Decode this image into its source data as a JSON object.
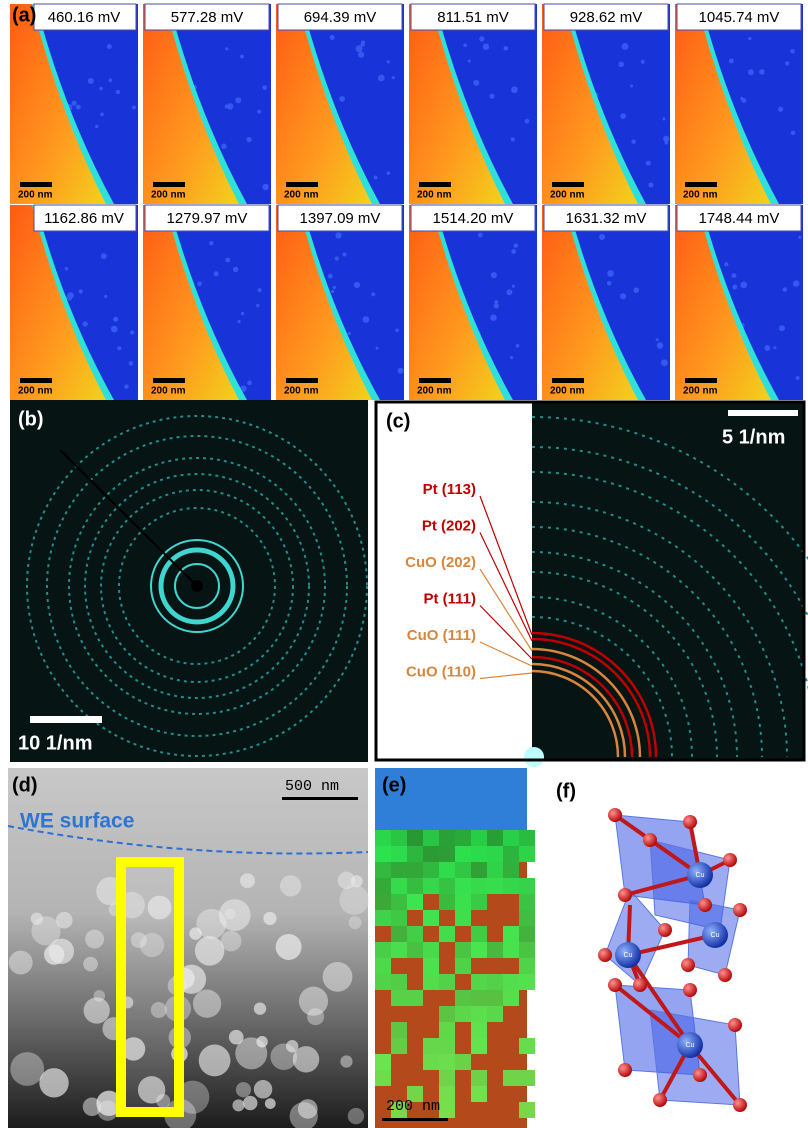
{
  "panel_a": {
    "label": "(a)",
    "tiles": [
      {
        "voltage": "460.16 mV",
        "scale_bar": "200 nm"
      },
      {
        "voltage": "577.28 mV",
        "scale_bar": "200 nm"
      },
      {
        "voltage": "694.39 mV",
        "scale_bar": "200 nm"
      },
      {
        "voltage": "811.51 mV",
        "scale_bar": "200 nm"
      },
      {
        "voltage": "928.62 mV",
        "scale_bar": "200 nm"
      },
      {
        "voltage": "1045.74 mV",
        "scale_bar": "200 nm"
      },
      {
        "voltage": "1162.86 mV",
        "scale_bar": "200 nm"
      },
      {
        "voltage": "1279.97 mV",
        "scale_bar": "200 nm"
      },
      {
        "voltage": "1397.09 mV",
        "scale_bar": "200 nm"
      },
      {
        "voltage": "1514.20 mV",
        "scale_bar": "200 nm"
      },
      {
        "voltage": "1631.32 mV",
        "scale_bar": "200 nm"
      },
      {
        "voltage": "1748.44 mV",
        "scale_bar": "200 nm"
      }
    ]
  },
  "panel_b": {
    "label": "(b)",
    "scale_bar": "10 1/nm"
  },
  "panel_c": {
    "label": "(c)",
    "scale_bar": "5 1/nm",
    "rings": [
      {
        "label": "Pt (113)",
        "color": "#c00000"
      },
      {
        "label": "Pt (202)",
        "color": "#c00000"
      },
      {
        "label": "CuO (202)",
        "color": "#d9853b"
      },
      {
        "label": "Pt (111)",
        "color": "#c00000"
      },
      {
        "label": "CuO (111)",
        "color": "#d9853b"
      },
      {
        "label": "CuO (110)",
        "color": "#d9853b"
      }
    ]
  },
  "panel_d": {
    "label": "(d)",
    "scale_bar": "500 nm",
    "annotation": "WE surface"
  },
  "panel_e": {
    "label": "(e)",
    "scale_bar": "200 nm"
  },
  "panel_f": {
    "label": "(f)",
    "atom_labels": [
      "Cu",
      "Cu",
      "Cu",
      "Cu"
    ]
  }
}
